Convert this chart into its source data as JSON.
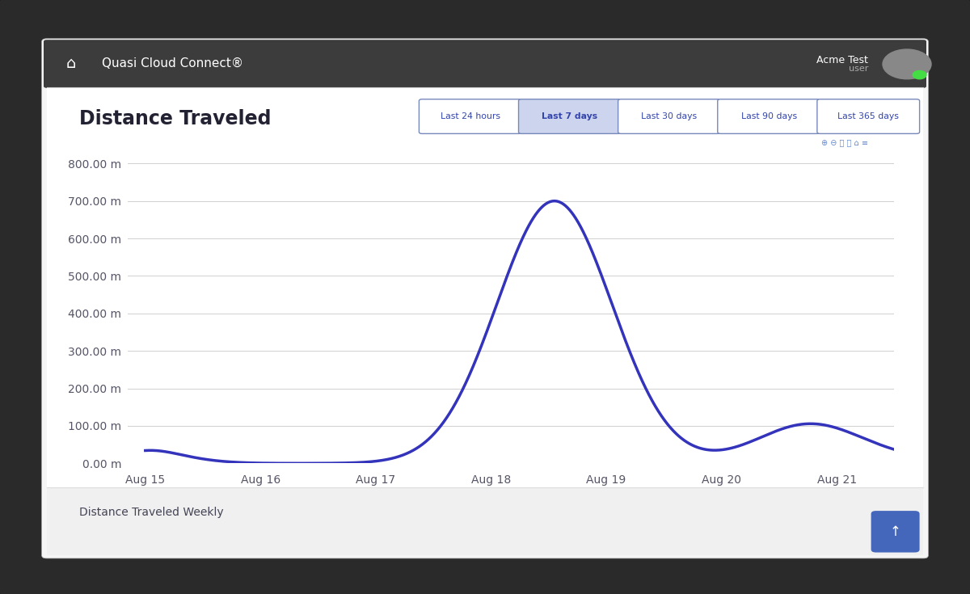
{
  "title": "Distance Traveled",
  "background_color": "#ffffff",
  "plot_bg_color": "#ffffff",
  "line_color": "#3333bb",
  "line_width": 2.5,
  "ytick_labels": [
    "0.00 m",
    "100.00 m",
    "200.00 m",
    "300.00 m",
    "400.00 m",
    "500.00 m",
    "600.00 m",
    "700.00 m",
    "800.00 m"
  ],
  "ytick_values": [
    0,
    100,
    200,
    300,
    400,
    500,
    600,
    700,
    800
  ],
  "ylim": [
    0,
    840
  ],
  "xtick_labels": [
    "Aug 15",
    "Aug 16",
    "Aug 17",
    "Aug 18",
    "Aug 19",
    "Aug 20",
    "Aug 21"
  ],
  "xtick_positions": [
    0,
    1,
    2,
    3,
    4,
    5,
    6
  ],
  "grid_color": "#d0d0d0",
  "title_fontsize": 17,
  "tick_fontsize": 10,
  "tick_color": "#555566",
  "tab_labels": [
    "Last 24 hours",
    "Last 7 days",
    "Last 30 days",
    "Last 90 days",
    "Last 365 days"
  ],
  "active_tab": 1,
  "tab_active_color": "#cdd5ee",
  "tab_inactive_color": "#ffffff",
  "tab_border_color": "#7788bb",
  "tab_text_color": "#3344aa",
  "nav_bar_color": "#3c3c3c",
  "tablet_outer_color": "#2a2a2a",
  "tablet_screen_color": "#f5f5f5",
  "white_card_color": "#ffffff"
}
